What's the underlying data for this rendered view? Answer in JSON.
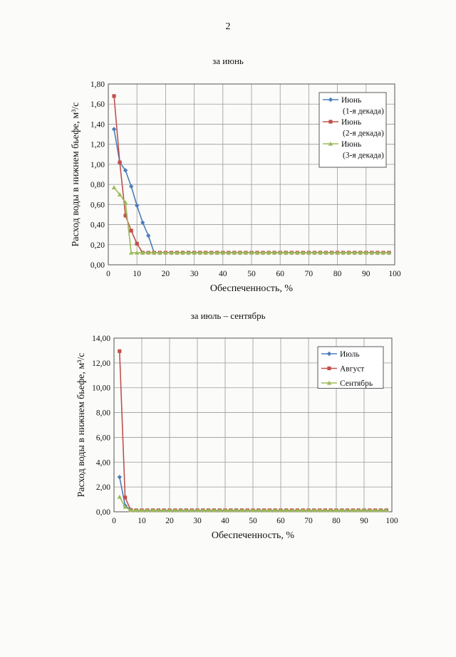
{
  "page_number": "2",
  "chart_data": [
    {
      "type": "line",
      "title": "за июнь",
      "xlabel": "Обеспеченность, %",
      "ylabel": "Расход воды в нижнем бьефе, м³/с",
      "xlim": [
        0,
        100
      ],
      "ylim": [
        0,
        1.8
      ],
      "xticks": [
        0,
        10,
        20,
        30,
        40,
        50,
        60,
        70,
        80,
        90,
        100
      ],
      "yticks": [
        0,
        0.2,
        0.4,
        0.6,
        0.8,
        1.0,
        1.2,
        1.4,
        1.6,
        1.8
      ],
      "ytick_labels": [
        "0,00",
        "0,20",
        "0,40",
        "0,60",
        "0,80",
        "1,00",
        "1,20",
        "1,40",
        "1,60",
        "1,80"
      ],
      "grid": true,
      "legend_position": "top-right",
      "series": [
        {
          "name_lines": [
            "Июнь",
            "(1-я декада)"
          ],
          "color": "#4a7ebb",
          "marker": "diamond",
          "x": [
            2,
            4,
            6,
            8,
            10,
            12,
            14,
            16,
            18,
            20,
            22,
            24,
            26,
            28,
            30,
            32,
            34,
            36,
            38,
            40,
            42,
            44,
            46,
            48,
            50,
            52,
            54,
            56,
            58,
            60,
            62,
            64,
            66,
            68,
            70,
            72,
            74,
            76,
            78,
            80,
            82,
            84,
            86,
            88,
            90,
            92,
            94,
            96,
            98
          ],
          "y": [
            1.35,
            1.02,
            0.94,
            0.78,
            0.59,
            0.42,
            0.29,
            0.12,
            0.12,
            0.12,
            0.12,
            0.12,
            0.12,
            0.12,
            0.12,
            0.12,
            0.12,
            0.12,
            0.12,
            0.12,
            0.12,
            0.12,
            0.12,
            0.12,
            0.12,
            0.12,
            0.12,
            0.12,
            0.12,
            0.12,
            0.12,
            0.12,
            0.12,
            0.12,
            0.12,
            0.12,
            0.12,
            0.12,
            0.12,
            0.12,
            0.12,
            0.12,
            0.12,
            0.12,
            0.12,
            0.12,
            0.12,
            0.12,
            0.12
          ]
        },
        {
          "name_lines": [
            "Июнь",
            "(2-я декада)"
          ],
          "color": "#c0504d",
          "marker": "square",
          "x": [
            2,
            4,
            6,
            8,
            10,
            12,
            14,
            16,
            18,
            20,
            22,
            24,
            26,
            28,
            30,
            32,
            34,
            36,
            38,
            40,
            42,
            44,
            46,
            48,
            50,
            52,
            54,
            56,
            58,
            60,
            62,
            64,
            66,
            68,
            70,
            72,
            74,
            76,
            78,
            80,
            82,
            84,
            86,
            88,
            90,
            92,
            94,
            96,
            98
          ],
          "y": [
            1.68,
            1.02,
            0.49,
            0.34,
            0.21,
            0.12,
            0.12,
            0.12,
            0.12,
            0.12,
            0.12,
            0.12,
            0.12,
            0.12,
            0.12,
            0.12,
            0.12,
            0.12,
            0.12,
            0.12,
            0.12,
            0.12,
            0.12,
            0.12,
            0.12,
            0.12,
            0.12,
            0.12,
            0.12,
            0.12,
            0.12,
            0.12,
            0.12,
            0.12,
            0.12,
            0.12,
            0.12,
            0.12,
            0.12,
            0.12,
            0.12,
            0.12,
            0.12,
            0.12,
            0.12,
            0.12,
            0.12,
            0.12,
            0.12
          ]
        },
        {
          "name_lines": [
            "Июнь",
            "(3-я декада)"
          ],
          "color": "#9bbb59",
          "marker": "triangle",
          "x": [
            2,
            4,
            6,
            8,
            10,
            12,
            14,
            16,
            18,
            20,
            22,
            24,
            26,
            28,
            30,
            32,
            34,
            36,
            38,
            40,
            42,
            44,
            46,
            48,
            50,
            52,
            54,
            56,
            58,
            60,
            62,
            64,
            66,
            68,
            70,
            72,
            74,
            76,
            78,
            80,
            82,
            84,
            86,
            88,
            90,
            92,
            94,
            96,
            98
          ],
          "y": [
            0.77,
            0.7,
            0.62,
            0.12,
            0.12,
            0.12,
            0.12,
            0.12,
            0.12,
            0.12,
            0.12,
            0.12,
            0.12,
            0.12,
            0.12,
            0.12,
            0.12,
            0.12,
            0.12,
            0.12,
            0.12,
            0.12,
            0.12,
            0.12,
            0.12,
            0.12,
            0.12,
            0.12,
            0.12,
            0.12,
            0.12,
            0.12,
            0.12,
            0.12,
            0.12,
            0.12,
            0.12,
            0.12,
            0.12,
            0.12,
            0.12,
            0.12,
            0.12,
            0.12,
            0.12,
            0.12,
            0.12,
            0.12,
            0.12
          ]
        }
      ]
    },
    {
      "type": "line",
      "title": "за июль – сентябрь",
      "xlabel": "Обеспеченность, %",
      "ylabel": "Расход воды в нижнем бьефе, м³/с",
      "xlim": [
        0,
        100
      ],
      "ylim": [
        0,
        14
      ],
      "xticks": [
        0,
        10,
        20,
        30,
        40,
        50,
        60,
        70,
        80,
        90,
        100
      ],
      "yticks": [
        0,
        2,
        4,
        6,
        8,
        10,
        12,
        14
      ],
      "ytick_labels": [
        "0,00",
        "2,00",
        "4,00",
        "6,00",
        "8,00",
        "10,00",
        "12,00",
        "14,00"
      ],
      "grid": true,
      "legend_position": "top-right",
      "series": [
        {
          "name_lines": [
            "Июль"
          ],
          "color": "#4a7ebb",
          "marker": "diamond",
          "x": [
            2,
            4,
            6,
            8,
            10,
            12,
            14,
            16,
            18,
            20,
            22,
            24,
            26,
            28,
            30,
            32,
            34,
            36,
            38,
            40,
            42,
            44,
            46,
            48,
            50,
            52,
            54,
            56,
            58,
            60,
            62,
            64,
            66,
            68,
            70,
            72,
            74,
            76,
            78,
            80,
            82,
            84,
            86,
            88,
            90,
            92,
            94,
            96,
            98
          ],
          "y": [
            2.8,
            0.5,
            0.15,
            0.12,
            0.12,
            0.12,
            0.12,
            0.12,
            0.12,
            0.12,
            0.12,
            0.12,
            0.12,
            0.12,
            0.12,
            0.12,
            0.12,
            0.12,
            0.12,
            0.12,
            0.12,
            0.12,
            0.12,
            0.12,
            0.12,
            0.12,
            0.12,
            0.12,
            0.12,
            0.12,
            0.12,
            0.12,
            0.12,
            0.12,
            0.12,
            0.12,
            0.12,
            0.12,
            0.12,
            0.12,
            0.12,
            0.12,
            0.12,
            0.12,
            0.12,
            0.12,
            0.12,
            0.12,
            0.12
          ]
        },
        {
          "name_lines": [
            "Август"
          ],
          "color": "#c0504d",
          "marker": "square",
          "x": [
            2,
            4,
            6,
            8,
            10,
            12,
            14,
            16,
            18,
            20,
            22,
            24,
            26,
            28,
            30,
            32,
            34,
            36,
            38,
            40,
            42,
            44,
            46,
            48,
            50,
            52,
            54,
            56,
            58,
            60,
            62,
            64,
            66,
            68,
            70,
            72,
            74,
            76,
            78,
            80,
            82,
            84,
            86,
            88,
            90,
            92,
            94,
            96,
            98
          ],
          "y": [
            12.95,
            1.15,
            0.15,
            0.12,
            0.12,
            0.12,
            0.12,
            0.12,
            0.12,
            0.12,
            0.12,
            0.12,
            0.12,
            0.12,
            0.12,
            0.12,
            0.12,
            0.12,
            0.12,
            0.12,
            0.12,
            0.12,
            0.12,
            0.12,
            0.12,
            0.12,
            0.12,
            0.12,
            0.12,
            0.12,
            0.12,
            0.12,
            0.12,
            0.12,
            0.12,
            0.12,
            0.12,
            0.12,
            0.12,
            0.12,
            0.12,
            0.12,
            0.12,
            0.12,
            0.12,
            0.12,
            0.12,
            0.12,
            0.12
          ]
        },
        {
          "name_lines": [
            "Сентябрь"
          ],
          "color": "#9bbb59",
          "marker": "triangle",
          "x": [
            2,
            4,
            6,
            8,
            10,
            12,
            14,
            16,
            18,
            20,
            22,
            24,
            26,
            28,
            30,
            32,
            34,
            36,
            38,
            40,
            42,
            44,
            46,
            48,
            50,
            52,
            54,
            56,
            58,
            60,
            62,
            64,
            66,
            68,
            70,
            72,
            74,
            76,
            78,
            80,
            82,
            84,
            86,
            88,
            90,
            92,
            94,
            96,
            98
          ],
          "y": [
            1.2,
            0.4,
            0.12,
            0.12,
            0.12,
            0.12,
            0.12,
            0.12,
            0.12,
            0.12,
            0.12,
            0.12,
            0.12,
            0.12,
            0.12,
            0.12,
            0.12,
            0.12,
            0.12,
            0.12,
            0.12,
            0.12,
            0.12,
            0.12,
            0.12,
            0.12,
            0.12,
            0.12,
            0.12,
            0.12,
            0.12,
            0.12,
            0.12,
            0.12,
            0.12,
            0.12,
            0.12,
            0.12,
            0.12,
            0.12,
            0.12,
            0.12,
            0.12,
            0.12,
            0.12,
            0.12,
            0.12,
            0.12,
            0.12
          ]
        }
      ]
    }
  ]
}
